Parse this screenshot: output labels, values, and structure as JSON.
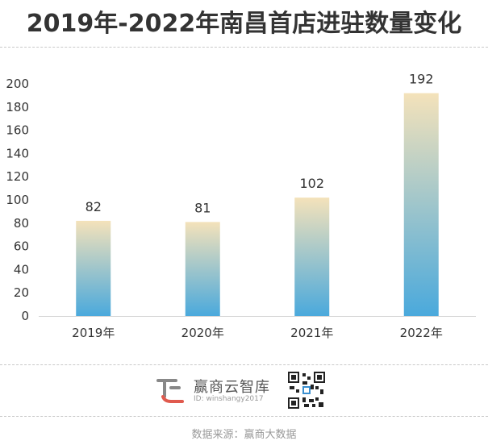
{
  "title": "2019年-2022年南昌首店进驻数量变化",
  "brand": {
    "name": "赢商云智库",
    "id_text": "ID: winshangy2017"
  },
  "source": "数据来源：赢商大数据",
  "colors": {
    "bar_top": "#f4e2ba",
    "bar_bottom": "#4aa9dc",
    "axis_text": "#333333",
    "logo_red": "#e05a4e",
    "logo_gray": "#888888"
  },
  "chart_data": {
    "type": "bar",
    "categories": [
      "2019年",
      "2020年",
      "2021年",
      "2022年"
    ],
    "values": [
      82,
      81,
      102,
      192
    ],
    "data_labels": [
      "82",
      "81",
      "102",
      "192"
    ],
    "ylim": [
      0,
      200
    ],
    "yticks": [
      0,
      20,
      40,
      60,
      80,
      100,
      120,
      140,
      160,
      180,
      200
    ],
    "grid": false,
    "legend": "none",
    "title": "",
    "xlabel": "",
    "ylabel": ""
  }
}
